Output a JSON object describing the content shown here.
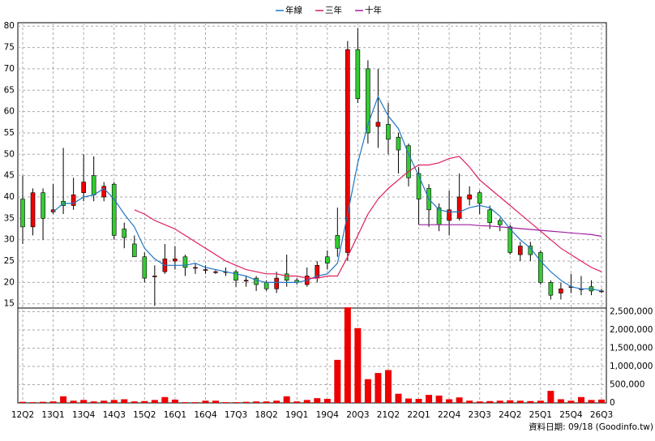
{
  "chart_data": [
    {
      "type": "candlestick",
      "categories": [
        "12Q2",
        null,
        null,
        "13Q1",
        null,
        null,
        "13Q4",
        null,
        null,
        "14Q3",
        null,
        null,
        "15Q2",
        null,
        null,
        "16Q1",
        null,
        null,
        "16Q4",
        null,
        null,
        "17Q3",
        null,
        null,
        "18Q2",
        null,
        null,
        "19Q1",
        null,
        null,
        "19Q4",
        null,
        null,
        "20Q3",
        null,
        null,
        "21Q2",
        null,
        null,
        "22Q1",
        null,
        null,
        "22Q4",
        null,
        null,
        "23Q3",
        null,
        null,
        "24Q2",
        null,
        null,
        "25Q1",
        null,
        null,
        "25Q4",
        null,
        null,
        "26Q3"
      ],
      "open": [
        39.5,
        33,
        41,
        36.5,
        39,
        38,
        41,
        45,
        40,
        43,
        32.5,
        29,
        26,
        21.5,
        22.5,
        25,
        26,
        23.5,
        23,
        22.5,
        22.5,
        22.5,
        20.5,
        21,
        20,
        18.5,
        22,
        20.5,
        19.5,
        21,
        26,
        31,
        27,
        74.5,
        70,
        56.5,
        57,
        54,
        52,
        45.5,
        42,
        37.5,
        34.5,
        35,
        39.5,
        41,
        37,
        34.5,
        33,
        26.5,
        28.5,
        27,
        20,
        17.5,
        19,
        18.5,
        19,
        18
      ],
      "high": [
        45,
        42,
        42,
        43,
        51.5,
        44.5,
        50,
        49.5,
        43.5,
        43.5,
        34,
        31,
        27,
        24,
        29,
        28.5,
        26.5,
        24.5,
        24,
        23,
        23.5,
        23,
        21.5,
        21.5,
        20.5,
        22.5,
        26.5,
        21,
        23.5,
        25,
        27.5,
        37.5,
        76.5,
        79.5,
        72,
        70,
        62,
        55,
        52.5,
        47,
        43,
        38.5,
        41.5,
        45.5,
        42.5,
        41.5,
        38,
        35,
        33.5,
        29.5,
        29.5,
        27.5,
        20.5,
        20,
        22,
        21.5,
        20.5,
        18.5
      ],
      "low": [
        29,
        31,
        30,
        36,
        36,
        37,
        39,
        39,
        39,
        30,
        28,
        26,
        20,
        14.5,
        22,
        23,
        21.5,
        22,
        22,
        22,
        21.5,
        19,
        19,
        18,
        18,
        17.5,
        19,
        19.5,
        19,
        20,
        23,
        26,
        25,
        62,
        52.5,
        51.5,
        50,
        45.5,
        42.5,
        33.5,
        33,
        32,
        31,
        34.5,
        38,
        36,
        32.5,
        32,
        26.5,
        25,
        25,
        19.5,
        16,
        16,
        17.5,
        17,
        17,
        17.5
      ],
      "close": [
        33,
        41,
        35,
        37,
        38,
        40.5,
        43.5,
        40.5,
        42.5,
        31,
        30.5,
        26,
        21,
        21.5,
        25.5,
        25.5,
        23.5,
        23.5,
        23,
        22.5,
        22.5,
        20.5,
        20.5,
        19.5,
        18.5,
        21,
        20.5,
        20,
        21.5,
        24,
        24.5,
        28,
        74.5,
        63,
        55,
        57.5,
        53.5,
        51,
        44.5,
        39.5,
        37,
        33.5,
        37,
        40,
        40.5,
        38.5,
        34,
        33.5,
        27,
        28.5,
        26.5,
        20,
        17,
        18.5,
        19,
        18.5,
        18,
        18
      ],
      "up_color": "#ee0000",
      "down_color": "#33cc33",
      "series": [
        {
          "name": "年線",
          "color": "#1f77c4",
          "values": [
            null,
            null,
            null,
            36.5,
            38.5,
            38.5,
            40,
            40.5,
            42,
            39.5,
            36,
            33,
            28,
            25.5,
            24,
            24,
            24,
            24.5,
            23.5,
            23,
            22.5,
            22,
            21.5,
            20.5,
            20,
            20,
            20,
            20,
            20.5,
            21.5,
            22,
            24.5,
            36,
            48,
            57,
            63.5,
            59,
            56,
            50,
            45,
            39.5,
            37,
            36.5,
            36.5,
            37.5,
            38,
            37.5,
            35.5,
            32.5,
            30,
            28,
            25,
            22.5,
            20.5,
            19,
            18.5,
            18.5,
            18
          ]
        },
        {
          "name": "三年",
          "color": "#e0205a",
          "values": [
            null,
            null,
            null,
            null,
            null,
            null,
            null,
            null,
            null,
            null,
            null,
            37,
            36,
            34.5,
            33.5,
            32.5,
            31,
            29.5,
            28,
            26.5,
            25,
            24,
            23,
            22.5,
            22,
            22,
            21.5,
            21.5,
            21,
            21,
            21.5,
            21.5,
            26,
            31,
            36,
            39.5,
            42,
            44,
            46,
            47.5,
            47.5,
            48,
            49,
            49.5,
            47,
            44,
            42,
            40,
            38,
            36,
            34,
            32,
            30,
            28,
            26.5,
            25,
            23.5,
            22.5
          ]
        },
        {
          "name": "十年",
          "color": "#a020a0",
          "values": [
            null,
            null,
            null,
            null,
            null,
            null,
            null,
            null,
            null,
            null,
            null,
            null,
            null,
            null,
            null,
            null,
            null,
            null,
            null,
            null,
            null,
            null,
            null,
            null,
            null,
            null,
            null,
            null,
            null,
            null,
            null,
            null,
            null,
            null,
            null,
            null,
            null,
            null,
            null,
            33.5,
            33.5,
            33.5,
            33.5,
            33.5,
            33.5,
            33.3,
            33.2,
            33,
            32.8,
            32.6,
            32.4,
            32.2,
            32,
            31.8,
            31.6,
            31.4,
            31.2,
            30.8
          ]
        }
      ],
      "ylim": [
        14,
        80.8
      ],
      "yticks": [
        15,
        20,
        25,
        30,
        35,
        40,
        45,
        50,
        55,
        60,
        65,
        70,
        75,
        80
      ],
      "grid": true,
      "legend": "top"
    },
    {
      "type": "bar",
      "color": "#ee0000",
      "values": [
        30000,
        20000,
        30000,
        40000,
        180000,
        60000,
        80000,
        40000,
        60000,
        80000,
        100000,
        40000,
        50000,
        80000,
        160000,
        90000,
        20000,
        20000,
        60000,
        60000,
        20000,
        20000,
        30000,
        40000,
        40000,
        60000,
        180000,
        40000,
        80000,
        130000,
        110000,
        1180000,
        2620000,
        2050000,
        650000,
        820000,
        900000,
        250000,
        120000,
        110000,
        220000,
        200000,
        100000,
        150000,
        60000,
        40000,
        50000,
        60000,
        70000,
        60000,
        50000,
        60000,
        330000,
        100000,
        60000,
        160000,
        80000,
        90000
      ],
      "ylim": [
        0,
        2600000
      ],
      "yticks": [
        0,
        {
          "value": 500000,
          "label": "500,000"
        },
        {
          "value": 1000000,
          "label": "1,000,000"
        },
        {
          "value": 1500000,
          "label": "1,500,000"
        },
        {
          "value": 2000000,
          "label": "2,000,000"
        },
        {
          "value": 2500000,
          "label": "2,500,000"
        }
      ],
      "grid": true,
      "footnote": "資料日期: 09/18 (Goodinfo.tw)"
    }
  ]
}
